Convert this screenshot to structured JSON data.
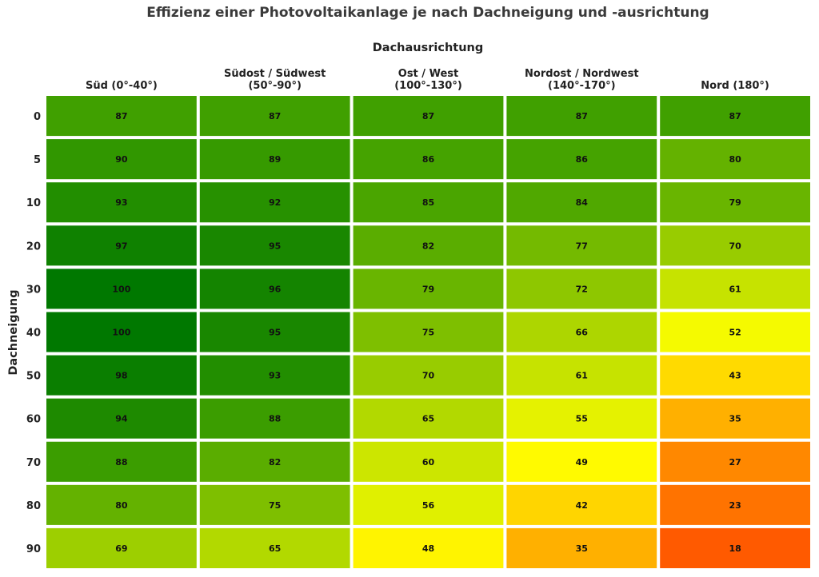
{
  "chart_data": {
    "type": "heatmap",
    "title": "Effizienz einer Photovoltaikanlage je nach Dachneigung und -ausrichtung",
    "xlabel": "Dachausrichtung",
    "ylabel": "Dachneigung",
    "columns": [
      [
        "Süd (0°-40°)"
      ],
      [
        "Südost / Südwest",
        "(50°-90°)"
      ],
      [
        "Ost / West",
        "(100°-130°)"
      ],
      [
        "Nordost / Nordwest",
        "(140°-170°)"
      ],
      [
        "Nord (180°)"
      ]
    ],
    "rows": [
      "0",
      "5",
      "10",
      "20",
      "30",
      "40",
      "50",
      "60",
      "70",
      "80",
      "90"
    ],
    "values": [
      [
        87,
        87,
        87,
        87,
        87
      ],
      [
        90,
        89,
        86,
        86,
        80
      ],
      [
        93,
        92,
        85,
        84,
        79
      ],
      [
        97,
        95,
        82,
        77,
        70
      ],
      [
        100,
        96,
        79,
        72,
        61
      ],
      [
        100,
        95,
        75,
        66,
        52
      ],
      [
        98,
        93,
        70,
        61,
        43
      ],
      [
        94,
        88,
        65,
        55,
        35
      ],
      [
        88,
        82,
        60,
        49,
        27
      ],
      [
        80,
        75,
        56,
        42,
        23
      ],
      [
        69,
        65,
        48,
        35,
        18
      ]
    ],
    "value_range": [
      18,
      100
    ],
    "colormap": {
      "stops": [
        {
          "value": 18,
          "color": "#ff5a00"
        },
        {
          "value": 35,
          "color": "#ffb000"
        },
        {
          "value": 50,
          "color": "#ffff00"
        },
        {
          "value": 70,
          "color": "#98cc00"
        },
        {
          "value": 87,
          "color": "#40a000"
        },
        {
          "value": 100,
          "color": "#007800"
        }
      ]
    },
    "grid": false,
    "legend": "none"
  }
}
